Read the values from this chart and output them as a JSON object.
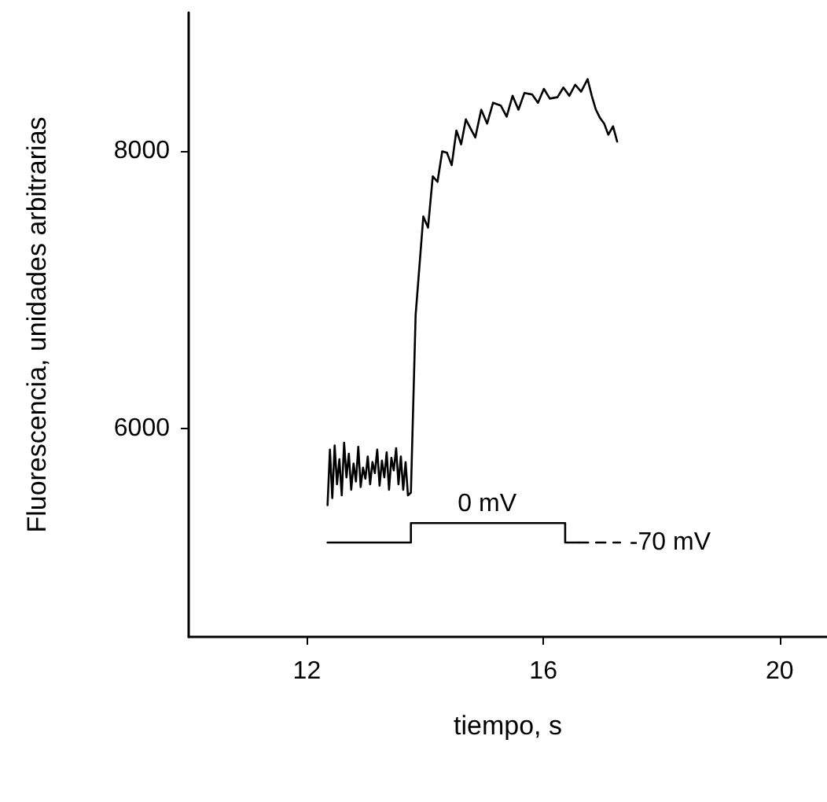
{
  "chart_data": {
    "type": "line",
    "xlabel": "tiempo, s",
    "ylabel": "Fluorescencia, unidades arbitrarias",
    "xlim": [
      10,
      20.8
    ],
    "xticks": [
      12,
      16,
      20
    ],
    "ylim": [
      4500,
      9000
    ],
    "yticks": [
      6000,
      8000
    ],
    "grid": false,
    "marker": "none",
    "series": [
      {
        "color": "#000000",
        "line_style": "solid",
        "x": [
          12.35,
          12.39,
          12.43,
          12.47,
          12.51,
          12.55,
          12.59,
          12.63,
          12.67,
          12.71,
          12.75,
          12.79,
          12.83,
          12.87,
          12.91,
          12.95,
          12.99,
          13.03,
          13.07,
          13.11,
          13.15,
          13.19,
          13.23,
          13.27,
          13.31,
          13.35,
          13.39,
          13.43,
          13.47,
          13.51,
          13.55,
          13.59,
          13.63,
          13.67,
          13.71,
          13.76,
          13.84,
          13.97,
          14.05,
          14.13,
          14.21,
          14.29,
          14.37,
          14.45,
          14.53,
          14.61,
          14.69,
          14.75,
          14.85,
          14.95,
          15.05,
          15.15,
          15.28,
          15.38,
          15.48,
          15.58,
          15.68,
          15.81,
          15.91,
          16.01,
          16.11,
          16.24,
          16.34,
          16.44,
          16.54,
          16.64,
          16.75,
          16.82,
          16.89,
          16.96,
          17.03,
          17.1,
          17.18,
          17.25
        ],
        "values": [
          5450,
          5850,
          5500,
          5880,
          5600,
          5780,
          5520,
          5900,
          5650,
          5820,
          5560,
          5750,
          5620,
          5870,
          5580,
          5720,
          5640,
          5800,
          5600,
          5760,
          5680,
          5850,
          5590,
          5770,
          5650,
          5830,
          5560,
          5790,
          5700,
          5860,
          5600,
          5800,
          5560,
          5760,
          5520,
          5540,
          6820,
          7530,
          7450,
          7820,
          7780,
          8000,
          7990,
          7900,
          8150,
          8050,
          8230,
          8180,
          8100,
          8300,
          8200,
          8350,
          8330,
          8250,
          8400,
          8300,
          8420,
          8410,
          8350,
          8450,
          8380,
          8390,
          8460,
          8400,
          8480,
          8430,
          8520,
          8400,
          8300,
          8240,
          8200,
          8120,
          8180,
          8070
        ]
      },
      {
        "color": "#000000",
        "line_style": "solid",
        "x": [
          12.35,
          13.76,
          13.76,
          16.37,
          16.37,
          16.6
        ],
        "values": [
          5180,
          5180,
          5320,
          5320,
          5180,
          5180
        ]
      },
      {
        "color": "#000000",
        "line_style": "dashed",
        "x": [
          16.6,
          17.3
        ],
        "values": [
          5180,
          5180
        ]
      }
    ],
    "annotations": [
      {
        "text": "0 mV",
        "x": 15.05,
        "y": 5320
      },
      {
        "text": "-70 mV",
        "x": 17.3,
        "y": 5180
      }
    ]
  }
}
